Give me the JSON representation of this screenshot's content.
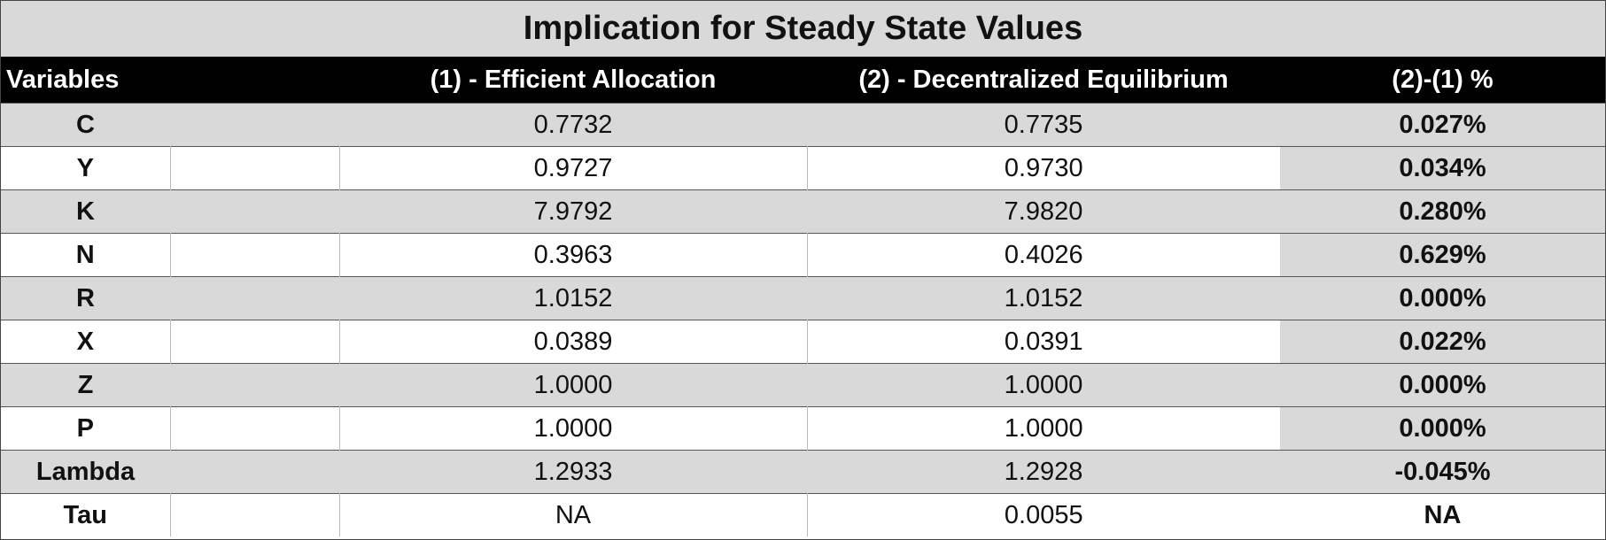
{
  "title": "Implication for Steady State Values",
  "table": {
    "headers": [
      "Variables",
      "(1) - Efficient Allocation",
      "(2) - Decentralized Equilibrium",
      "(2)-(1) %"
    ],
    "rows": [
      [
        "C",
        "0.7732",
        "0.7735",
        "0.027%"
      ],
      [
        "Y",
        "0.9727",
        "0.9730",
        "0.034%"
      ],
      [
        "K",
        "7.9792",
        "7.9820",
        "0.280%"
      ],
      [
        "N",
        "0.3963",
        "0.4026",
        "0.629%"
      ],
      [
        "R",
        "1.0152",
        "1.0152",
        "0.000%"
      ],
      [
        "X",
        "0.0389",
        "0.0391",
        "0.022%"
      ],
      [
        "Z",
        "1.0000",
        "1.0000",
        "0.000%"
      ],
      [
        "P",
        "1.0000",
        "1.0000",
        "0.000%"
      ],
      [
        "Lambda",
        "1.2933",
        "1.2928",
        "-0.045%"
      ],
      [
        "Tau",
        "NA",
        "0.0055",
        "NA"
      ]
    ]
  }
}
